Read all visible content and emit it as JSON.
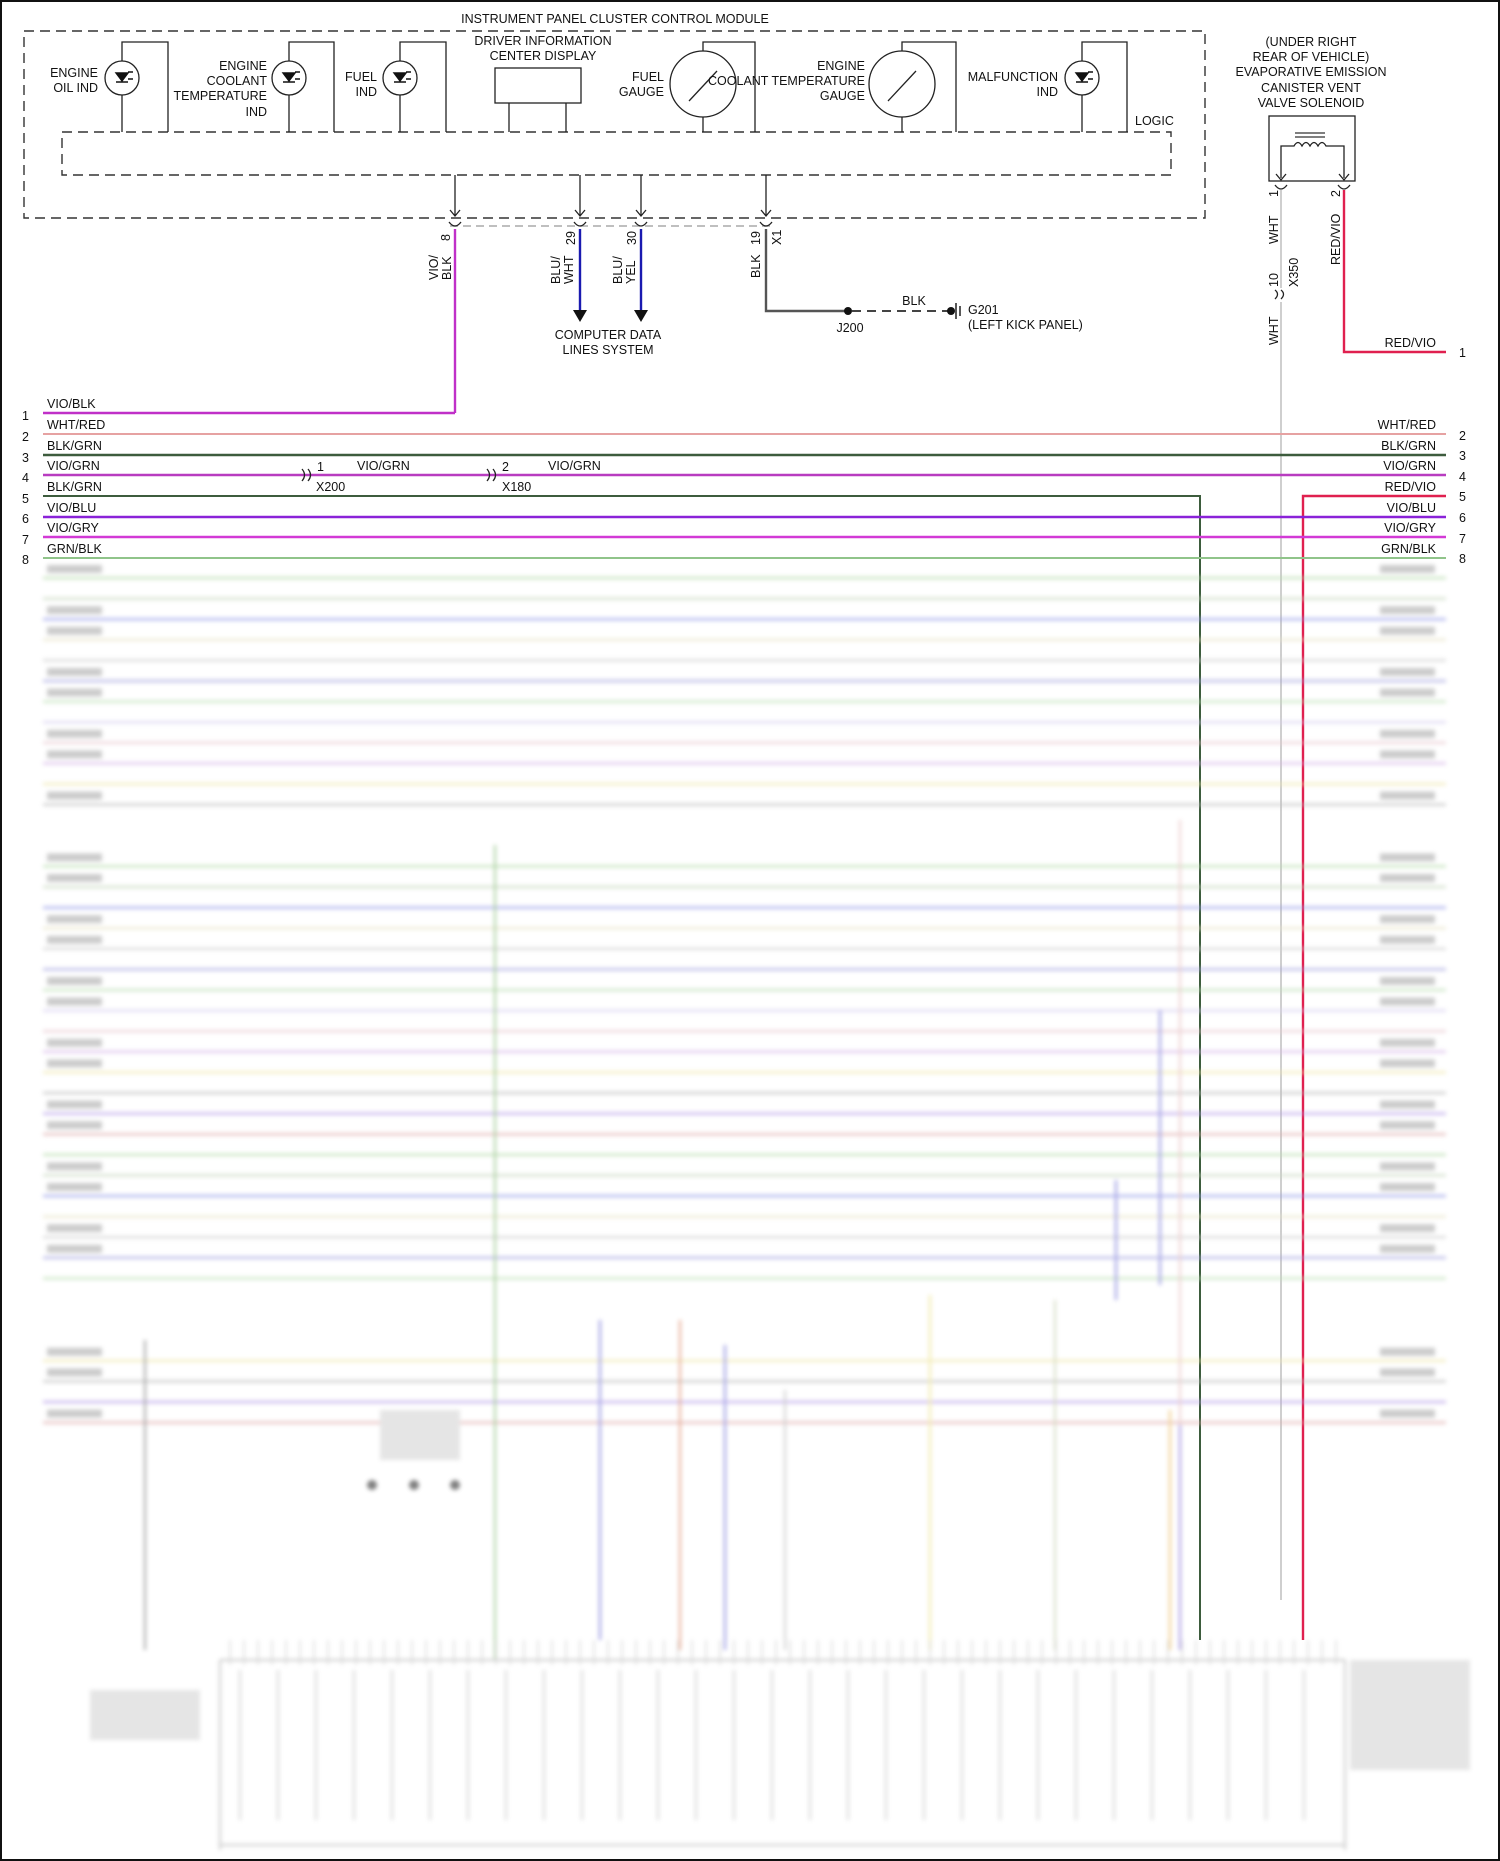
{
  "module": {
    "title": "INSTRUMENT PANEL CLUSTER CONTROL MODULE",
    "logic_label": "LOGIC",
    "components": {
      "oil": [
        "ENGINE",
        "OIL IND"
      ],
      "coolant_ind": [
        "ENGINE",
        "COOLANT",
        "TEMPERATURE",
        "IND"
      ],
      "fuel_ind": [
        "FUEL",
        "IND"
      ],
      "dic": [
        "DRIVER INFORMATION",
        "CENTER DISPLAY"
      ],
      "fuel_gauge": [
        "FUEL",
        "GAUGE"
      ],
      "coolant_gauge": [
        "ENGINE",
        "COOLANT TEMPERATURE",
        "GAUGE"
      ],
      "malfunction": [
        "MALFUNCTION",
        "IND"
      ]
    },
    "pins": {
      "p8": {
        "num": "8",
        "wire": [
          "VIO/",
          "BLK"
        ]
      },
      "p29": {
        "num": "29",
        "wire": [
          "BLU/",
          "WHT"
        ]
      },
      "p30": {
        "num": "30",
        "wire": [
          "BLU/",
          "YEL"
        ]
      },
      "p19": {
        "num": "19",
        "connector": "X1",
        "wire": "BLK"
      }
    },
    "data_lines": [
      "COMPUTER DATA",
      "LINES SYSTEM"
    ]
  },
  "ground": {
    "splice": "J200",
    "wire": "BLK",
    "ground_id": "G201",
    "location": "(LEFT KICK PANEL)"
  },
  "solenoid": {
    "title": [
      "(UNDER RIGHT",
      "REAR OF VEHICLE)",
      "EVAPORATIVE EMISSION",
      "CANISTER VENT",
      "VALVE SOLENOID"
    ],
    "pin1": "1",
    "pin2": "2",
    "wire1": "WHT",
    "wire1b": "WHT",
    "wire2": "RED/VIO",
    "connector": "X350",
    "connector_pin": "10",
    "out_label": "RED/VIO",
    "out_num": "1"
  },
  "rows": [
    {
      "num": "1",
      "left": "VIO/BLK",
      "right": "",
      "color": "#c030c8"
    },
    {
      "num": "2",
      "left": "WHT/RED",
      "right": "WHT/RED",
      "color": "#e6a2a2"
    },
    {
      "num": "3",
      "left": "BLK/GRN",
      "right": "BLK/GRN",
      "color": "#3d5c3d"
    },
    {
      "num": "4",
      "left": "VIO/GRN",
      "right": "VIO/GRN",
      "color": "#b83cc0"
    },
    {
      "num": "5",
      "left": "BLK/GRN",
      "right": "RED/VIO",
      "color": "#3d5c3d"
    },
    {
      "num": "6",
      "left": "VIO/BLU",
      "right": "VIO/BLU",
      "color": "#8a22d8"
    },
    {
      "num": "7",
      "left": "VIO/GRY",
      "right": "VIO/GRY",
      "color": "#d23ad6"
    },
    {
      "num": "8",
      "left": "GRN/BLK",
      "right": "GRN/BLK",
      "color": "#90c48a"
    }
  ],
  "inline": {
    "x200": {
      "pin": "1",
      "name": "X200",
      "wire": "VIO/GRN"
    },
    "x180": {
      "pin": "2",
      "name": "X180",
      "wire": "VIO/GRN"
    }
  }
}
